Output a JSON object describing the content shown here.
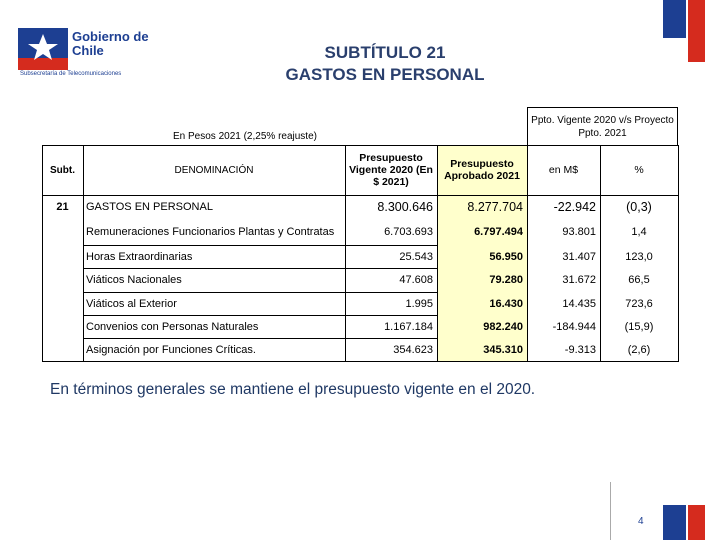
{
  "header": {
    "logo_title": "Gobierno de Chile",
    "logo_subtitle": "Subsecretaría de Telecomunicaciones",
    "title_line1": "SUBTÍTULO 21",
    "title_line2": "GASTOS EN PERSONAL"
  },
  "table": {
    "note": "En Pesos 2021 (2,25% reajuste)",
    "group_header": "Ppto. Vigente 2020 v/s Proyecto Ppto. 2021",
    "columns": [
      "Subt.",
      "DENOMINACIÓN",
      "Presupuesto Vigente 2020 (En $ 2021)",
      "Presupuesto Aprobado 2021",
      "en M$",
      "%"
    ],
    "rows": [
      {
        "subt": "21",
        "name": "GASTOS EN PERSONAL",
        "vigente": "8.300.646",
        "aprobado": "8.277.704",
        "diff": "-22.942",
        "pct": "(0,3)"
      },
      {
        "name": "Remuneraciones Funcionarios Plantas y Contratas",
        "vigente": "6.703.693",
        "aprobado": "6.797.494",
        "diff": "93.801",
        "pct": "1,4"
      },
      {
        "name": "Horas Extraordinarias",
        "vigente": "25.543",
        "aprobado": "56.950",
        "diff": "31.407",
        "pct": "123,0"
      },
      {
        "name": "Viáticos Nacionales",
        "vigente": "47.608",
        "aprobado": "79.280",
        "diff": "31.672",
        "pct": "66,5"
      },
      {
        "name": "Viáticos al Exterior",
        "vigente": "1.995",
        "aprobado": "16.430",
        "diff": "14.435",
        "pct": "723,6"
      },
      {
        "name": "Convenios con Personas Naturales",
        "vigente": "1.167.184",
        "aprobado": "982.240",
        "diff": "-184.944",
        "pct": "(15,9)"
      },
      {
        "name": "Asignación por Funciones Críticas.",
        "vigente": "354.623",
        "aprobado": "345.310",
        "diff": "-9.313",
        "pct": "(2,6)"
      }
    ]
  },
  "footer": {
    "text": "En términos generales se mantiene el presupuesto vigente en el 2020.",
    "page_number": "4"
  }
}
